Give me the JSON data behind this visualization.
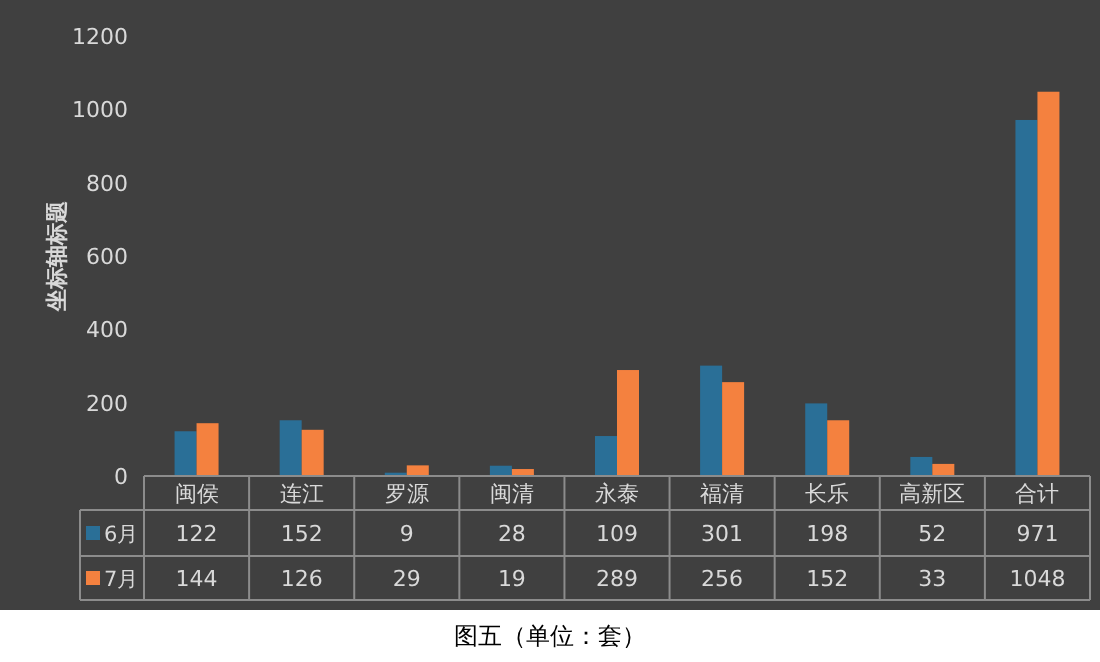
{
  "chart_data": {
    "type": "bar",
    "ylabel": "坐标轴标题",
    "categories": [
      "闽侯",
      "连江",
      "罗源",
      "闽清",
      "永泰",
      "福清",
      "长乐",
      "高新区",
      "合计"
    ],
    "series": [
      {
        "name": "6月",
        "color": "#2a6f97",
        "values": [
          122,
          152,
          9,
          28,
          109,
          301,
          198,
          52,
          971
        ]
      },
      {
        "name": "7月",
        "color": "#f4813f",
        "values": [
          144,
          126,
          29,
          19,
          289,
          256,
          152,
          33,
          1048
        ]
      }
    ],
    "ylim": [
      0,
      1200
    ],
    "yticks": [
      0,
      200,
      400,
      600,
      800,
      1000,
      1200
    ],
    "data_labels": true,
    "legend": "bottom",
    "annotations": [
      "图五（单位：套）"
    ]
  }
}
